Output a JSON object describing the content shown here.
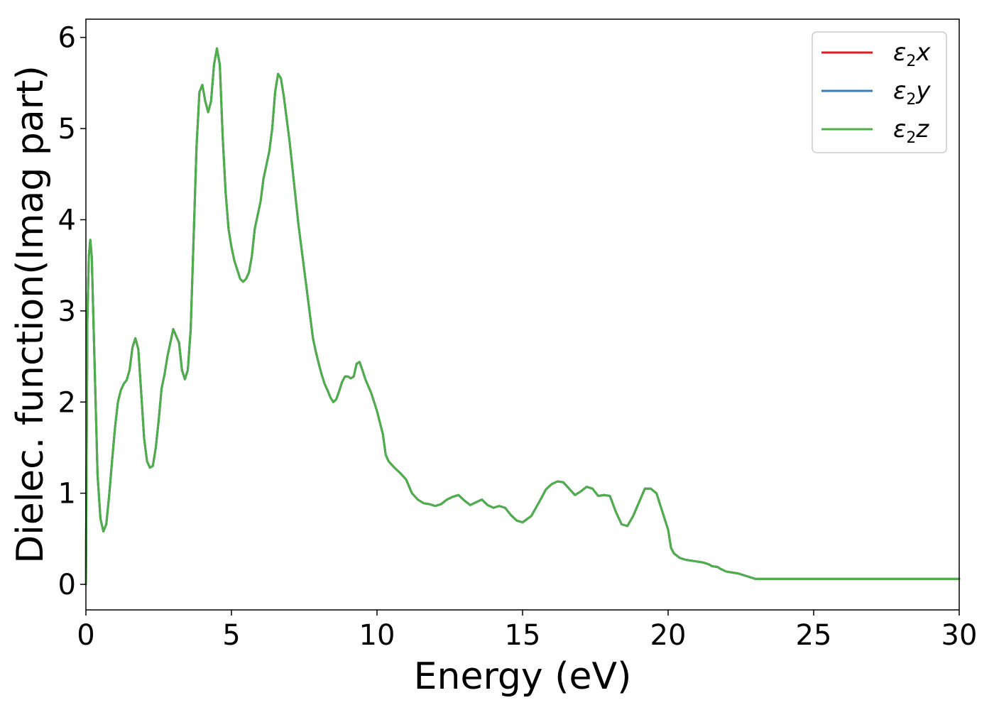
{
  "chart_data": {
    "type": "line",
    "xlabel": "Energy (eV)",
    "ylabel": "Dielec. function(Imag part)",
    "xlim": [
      0,
      30
    ],
    "ylim": [
      -0.28,
      6.2
    ],
    "xticks": [
      "0",
      "5",
      "10",
      "15",
      "20",
      "25",
      "30"
    ],
    "yticks": [
      "0",
      "1",
      "2",
      "3",
      "4",
      "5",
      "6"
    ],
    "grid": false,
    "legend_position": "top-right",
    "x": [
      0,
      0.05,
      0.1,
      0.15,
      0.2,
      0.3,
      0.4,
      0.5,
      0.6,
      0.7,
      0.8,
      0.9,
      1.0,
      1.1,
      1.2,
      1.3,
      1.4,
      1.5,
      1.6,
      1.7,
      1.8,
      1.9,
      2.0,
      2.1,
      2.2,
      2.3,
      2.4,
      2.5,
      2.6,
      2.7,
      2.8,
      3.0,
      3.2,
      3.3,
      3.4,
      3.5,
      3.6,
      3.7,
      3.8,
      3.9,
      4.0,
      4.1,
      4.2,
      4.3,
      4.4,
      4.5,
      4.6,
      4.7,
      4.8,
      4.9,
      5.0,
      5.1,
      5.2,
      5.3,
      5.4,
      5.5,
      5.6,
      5.7,
      5.8,
      6.0,
      6.1,
      6.2,
      6.3,
      6.4,
      6.5,
      6.6,
      6.7,
      6.8,
      6.9,
      7.0,
      7.1,
      7.2,
      7.3,
      7.4,
      7.5,
      7.6,
      7.7,
      7.8,
      7.9,
      8.0,
      8.1,
      8.2,
      8.3,
      8.4,
      8.5,
      8.6,
      8.7,
      8.8,
      8.9,
      9.0,
      9.1,
      9.2,
      9.3,
      9.4,
      9.5,
      9.6,
      9.8,
      10.0,
      10.2,
      10.3,
      10.4,
      10.6,
      10.8,
      11.0,
      11.2,
      11.4,
      11.6,
      11.8,
      12.0,
      12.2,
      12.4,
      12.6,
      12.8,
      13.0,
      13.2,
      13.4,
      13.6,
      13.8,
      14.0,
      14.2,
      14.4,
      14.6,
      14.8,
      15.0,
      15.3,
      15.6,
      15.8,
      16.0,
      16.2,
      16.4,
      16.6,
      16.8,
      17.0,
      17.2,
      17.4,
      17.6,
      17.8,
      18.0,
      18.2,
      18.4,
      18.6,
      18.8,
      19.0,
      19.2,
      19.4,
      19.6,
      19.8,
      20.0,
      20.1,
      20.2,
      20.4,
      20.6,
      20.8,
      21.0,
      21.2,
      21.4,
      21.5,
      21.7,
      21.8,
      22.0,
      22.2,
      22.4,
      22.6,
      22.8,
      23.0,
      23.1,
      23.2,
      23.4,
      23.6,
      23.8,
      24.0,
      24.2,
      24.4,
      24.6,
      24.8,
      25.0,
      25.3,
      25.6,
      26.0,
      26.5,
      27.0,
      27.5,
      28.0,
      28.5,
      29.0,
      29.5,
      30.0
    ],
    "series": [
      {
        "name": "ε2x",
        "color": "#e41a1c",
        "y": [
          0.0,
          2.9,
          3.6,
          3.78,
          3.6,
          2.4,
          1.2,
          0.72,
          0.58,
          0.66,
          0.98,
          1.36,
          1.72,
          2.0,
          2.13,
          2.2,
          2.24,
          2.35,
          2.6,
          2.7,
          2.58,
          2.1,
          1.6,
          1.35,
          1.28,
          1.3,
          1.5,
          1.8,
          2.15,
          2.3,
          2.5,
          2.8,
          2.65,
          2.35,
          2.25,
          2.35,
          2.8,
          3.8,
          4.8,
          5.4,
          5.48,
          5.3,
          5.18,
          5.3,
          5.7,
          5.88,
          5.7,
          4.9,
          4.3,
          3.9,
          3.7,
          3.55,
          3.45,
          3.35,
          3.32,
          3.35,
          3.42,
          3.6,
          3.9,
          4.2,
          4.45,
          4.6,
          4.75,
          5.0,
          5.4,
          5.6,
          5.55,
          5.35,
          5.1,
          4.85,
          4.55,
          4.25,
          3.95,
          3.7,
          3.45,
          3.2,
          2.95,
          2.7,
          2.55,
          2.42,
          2.3,
          2.2,
          2.13,
          2.05,
          2.0,
          2.03,
          2.12,
          2.22,
          2.28,
          2.28,
          2.26,
          2.28,
          2.42,
          2.44,
          2.35,
          2.25,
          2.1,
          1.9,
          1.65,
          1.42,
          1.35,
          1.28,
          1.22,
          1.15,
          1.0,
          0.93,
          0.89,
          0.88,
          0.86,
          0.88,
          0.93,
          0.96,
          0.98,
          0.92,
          0.87,
          0.9,
          0.93,
          0.87,
          0.84,
          0.86,
          0.84,
          0.76,
          0.7,
          0.68,
          0.75,
          0.92,
          1.04,
          1.1,
          1.13,
          1.12,
          1.05,
          0.98,
          1.02,
          1.07,
          1.05,
          0.97,
          0.98,
          0.97,
          0.8,
          0.66,
          0.64,
          0.75,
          0.9,
          1.05,
          1.05,
          1.0,
          0.8,
          0.6,
          0.4,
          0.34,
          0.29,
          0.27,
          0.26,
          0.25,
          0.24,
          0.22,
          0.2,
          0.19,
          0.17,
          0.14,
          0.13,
          0.12,
          0.1,
          0.08,
          0.06,
          0.06,
          0.06,
          0.06,
          0.06,
          0.06,
          0.06,
          0.06,
          0.06,
          0.06,
          0.06,
          0.06,
          0.06,
          0.06,
          0.06,
          0.06,
          0.06,
          0.06,
          0.06,
          0.06,
          0.06,
          0.06,
          0.06
        ]
      },
      {
        "name": "ε2y",
        "color": "#377eb8",
        "same_as": "ε2x"
      },
      {
        "name": "ε2z",
        "color": "#4daf4a",
        "same_as": "ε2x"
      }
    ]
  },
  "legend": [
    {
      "base": "ε",
      "sub": "2",
      "var": "x",
      "color": "#e41a1c"
    },
    {
      "base": "ε",
      "sub": "2",
      "var": "y",
      "color": "#377eb8"
    },
    {
      "base": "ε",
      "sub": "2",
      "var": "z",
      "color": "#4daf4a"
    }
  ]
}
